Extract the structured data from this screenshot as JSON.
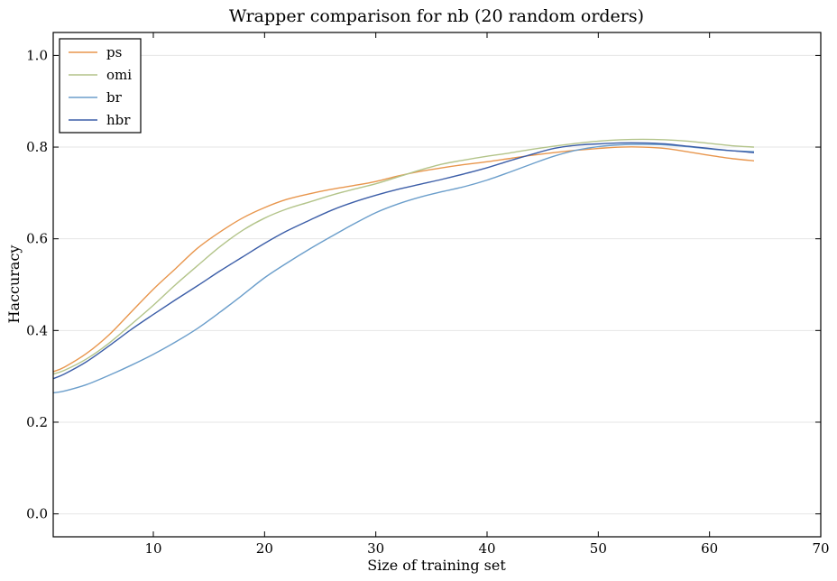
{
  "chart_data": {
    "type": "line",
    "title": "Wrapper comparison for nb (20 random orders)",
    "xlabel": "Size of training set",
    "ylabel": "Haccuracy",
    "xlim": [
      1,
      70
    ],
    "ylim": [
      -0.05,
      1.05
    ],
    "xticks": [
      10,
      20,
      30,
      40,
      50,
      60,
      70
    ],
    "yticks": [
      0.0,
      0.2,
      0.4,
      0.6,
      0.8,
      1.0
    ],
    "xtick_labels": [
      "10",
      "20",
      "30",
      "40",
      "50",
      "60",
      "70"
    ],
    "ytick_labels": [
      "0.0",
      "0.2",
      "0.4",
      "0.6",
      "0.8",
      "1.0"
    ],
    "grid": "horizontal",
    "legend": "top-left",
    "series": [
      {
        "name": "ps",
        "color": "#e8964d",
        "x": [
          1,
          2,
          4,
          6,
          8,
          10,
          12,
          14,
          16,
          18,
          20,
          22,
          24,
          26,
          28,
          30,
          32,
          34,
          36,
          38,
          40,
          42,
          44,
          46,
          48,
          50,
          52,
          54,
          56,
          58,
          60,
          62,
          64
        ],
        "y": [
          0.31,
          0.32,
          0.35,
          0.39,
          0.44,
          0.49,
          0.535,
          0.58,
          0.615,
          0.645,
          0.668,
          0.686,
          0.698,
          0.708,
          0.716,
          0.725,
          0.737,
          0.747,
          0.755,
          0.762,
          0.768,
          0.775,
          0.782,
          0.788,
          0.793,
          0.797,
          0.8,
          0.8,
          0.797,
          0.79,
          0.782,
          0.775,
          0.77
        ]
      },
      {
        "name": "omi",
        "color": "#b3c48a",
        "x": [
          1,
          2,
          4,
          6,
          8,
          10,
          12,
          14,
          16,
          18,
          20,
          22,
          24,
          26,
          28,
          30,
          32,
          34,
          36,
          38,
          40,
          42,
          44,
          46,
          48,
          50,
          52,
          54,
          56,
          58,
          60,
          62,
          64
        ],
        "y": [
          0.305,
          0.313,
          0.338,
          0.372,
          0.413,
          0.455,
          0.5,
          0.542,
          0.583,
          0.618,
          0.645,
          0.665,
          0.68,
          0.695,
          0.708,
          0.72,
          0.735,
          0.75,
          0.763,
          0.772,
          0.78,
          0.787,
          0.795,
          0.802,
          0.808,
          0.813,
          0.816,
          0.817,
          0.816,
          0.813,
          0.808,
          0.803,
          0.8
        ]
      },
      {
        "name": "br",
        "color": "#6b9ecb",
        "x": [
          1,
          2,
          4,
          6,
          8,
          10,
          12,
          14,
          16,
          18,
          20,
          22,
          24,
          26,
          28,
          30,
          32,
          34,
          36,
          38,
          40,
          42,
          44,
          46,
          48,
          50,
          52,
          54,
          56,
          58,
          60,
          62,
          64
        ],
        "y": [
          0.264,
          0.268,
          0.282,
          0.302,
          0.324,
          0.348,
          0.375,
          0.405,
          0.44,
          0.477,
          0.515,
          0.547,
          0.577,
          0.605,
          0.632,
          0.657,
          0.676,
          0.691,
          0.703,
          0.714,
          0.728,
          0.745,
          0.763,
          0.78,
          0.793,
          0.801,
          0.805,
          0.806,
          0.805,
          0.801,
          0.796,
          0.792,
          0.79
        ]
      },
      {
        "name": "hbr",
        "color": "#3c5ea8",
        "x": [
          1,
          2,
          4,
          6,
          8,
          10,
          12,
          14,
          16,
          18,
          20,
          22,
          24,
          26,
          28,
          30,
          32,
          34,
          36,
          38,
          40,
          42,
          44,
          46,
          48,
          50,
          52,
          54,
          56,
          58,
          60,
          62,
          64
        ],
        "y": [
          0.295,
          0.305,
          0.332,
          0.366,
          0.402,
          0.435,
          0.467,
          0.498,
          0.53,
          0.56,
          0.59,
          0.617,
          0.64,
          0.662,
          0.68,
          0.695,
          0.708,
          0.719,
          0.73,
          0.742,
          0.755,
          0.77,
          0.784,
          0.797,
          0.804,
          0.807,
          0.809,
          0.809,
          0.807,
          0.802,
          0.797,
          0.792,
          0.788
        ]
      }
    ]
  }
}
